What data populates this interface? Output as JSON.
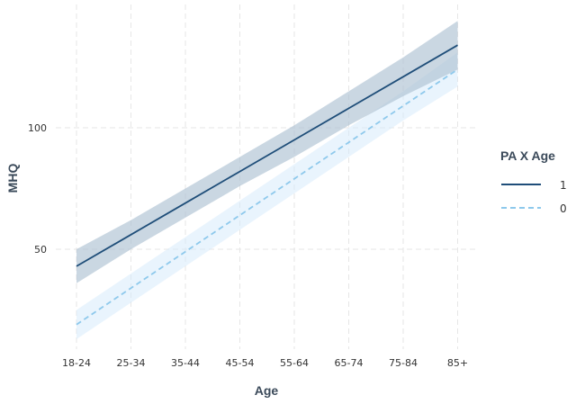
{
  "chart_data": {
    "type": "line",
    "title": "",
    "xlabel": "Age",
    "ylabel": "MHQ",
    "categories": [
      "18-24",
      "25-34",
      "35-44",
      "45-54",
      "55-64",
      "65-74",
      "75-84",
      "85+"
    ],
    "y_ticks": [
      50,
      100
    ],
    "ylim": [
      10,
      145
    ],
    "grid": true,
    "legend": {
      "title": "PA X Age",
      "placement": "right",
      "entries": [
        "1",
        "0"
      ]
    },
    "series": [
      {
        "name": "1",
        "line_style": "solid",
        "color": "#1f4e79",
        "band_color": "#a9bed1",
        "values": [
          43,
          56,
          69,
          82,
          95,
          108,
          121,
          134
        ],
        "lower": [
          36,
          50,
          63,
          76,
          88,
          101,
          113,
          124
        ],
        "upper": [
          50,
          62,
          75,
          88,
          101,
          115,
          129,
          144
        ]
      },
      {
        "name": "0",
        "line_style": "dashed",
        "color": "#8ec9ec",
        "band_color": "#d3eafb",
        "values": [
          19,
          34,
          49,
          64,
          79,
          94,
          109,
          124
        ],
        "lower": [
          13,
          28,
          43,
          58,
          73,
          88,
          103,
          117
        ],
        "upper": [
          25,
          40,
          55,
          70,
          85,
          100,
          115,
          131
        ]
      }
    ]
  }
}
